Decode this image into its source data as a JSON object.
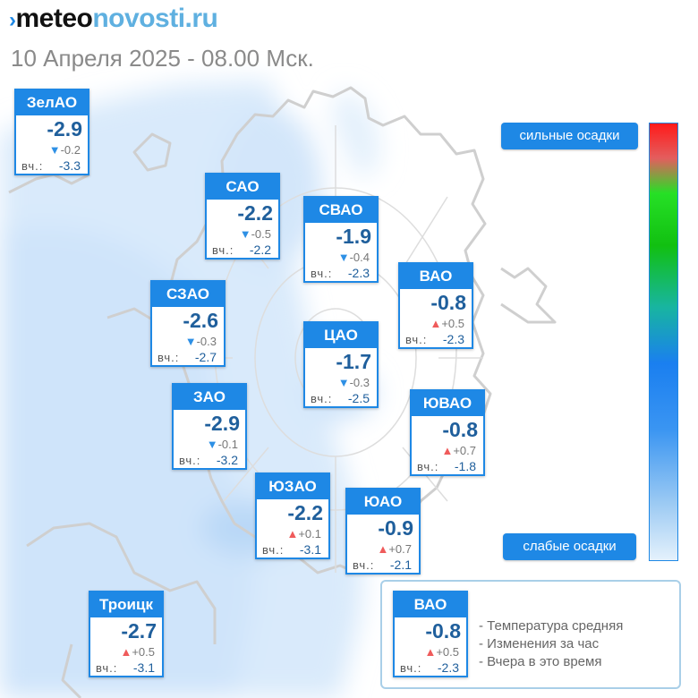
{
  "header": {
    "logo_arrow": "›",
    "logo_meteo": "meteo",
    "logo_novosti": "novosti.ru",
    "date_text": "10 Апреля 2025 - 08.00 Мск."
  },
  "yesterday_label": "вч.:",
  "districts": [
    {
      "id": "zelao",
      "name": "ЗелАО",
      "temp": "-2.9",
      "trend": "down",
      "change": "-0.2",
      "yesterday": "-3.3"
    },
    {
      "id": "sao",
      "name": "САО",
      "temp": "-2.2",
      "trend": "down",
      "change": "-0.5",
      "yesterday": "-2.2"
    },
    {
      "id": "svao",
      "name": "СВАО",
      "temp": "-1.9",
      "trend": "down",
      "change": "-0.4",
      "yesterday": "-2.3"
    },
    {
      "id": "szao",
      "name": "СЗАО",
      "temp": "-2.6",
      "trend": "down",
      "change": "-0.3",
      "yesterday": "-2.7"
    },
    {
      "id": "vao",
      "name": "ВАО",
      "temp": "-0.8",
      "trend": "up",
      "change": "+0.5",
      "yesterday": "-2.3"
    },
    {
      "id": "cao",
      "name": "ЦАО",
      "temp": "-1.7",
      "trend": "down",
      "change": "-0.3",
      "yesterday": "-2.5"
    },
    {
      "id": "zao",
      "name": "ЗАО",
      "temp": "-2.9",
      "trend": "down",
      "change": "-0.1",
      "yesterday": "-3.2"
    },
    {
      "id": "yuvao",
      "name": "ЮВАО",
      "temp": "-0.8",
      "trend": "up",
      "change": "+0.7",
      "yesterday": "-1.8"
    },
    {
      "id": "yuzao",
      "name": "ЮЗАО",
      "temp": "-2.2",
      "trend": "up",
      "change": "+0.1",
      "yesterday": "-3.1"
    },
    {
      "id": "yuao",
      "name": "ЮАО",
      "temp": "-0.9",
      "trend": "up",
      "change": "+0.7",
      "yesterday": "-2.1"
    },
    {
      "id": "troitsk",
      "name": "Троицк",
      "temp": "-2.7",
      "trend": "up",
      "change": "+0.5",
      "yesterday": "-3.1"
    }
  ],
  "precip_scale": {
    "strong_label": "сильные осадки",
    "weak_label": "слабые осадки"
  },
  "legend": {
    "example": {
      "name": "ВАО",
      "temp": "-0.8",
      "trend": "up",
      "change": "+0.5",
      "yesterday": "-2.3"
    },
    "line_avg": "- Температура средняя",
    "line_change": "- Изменения за час",
    "line_yesterday": "- Вчера в это время"
  },
  "colors": {
    "accent": "#1e88e5",
    "temp_text": "#1f5f9c",
    "trend_down": "#2e90e5",
    "trend_up": "#ef5b5b"
  }
}
